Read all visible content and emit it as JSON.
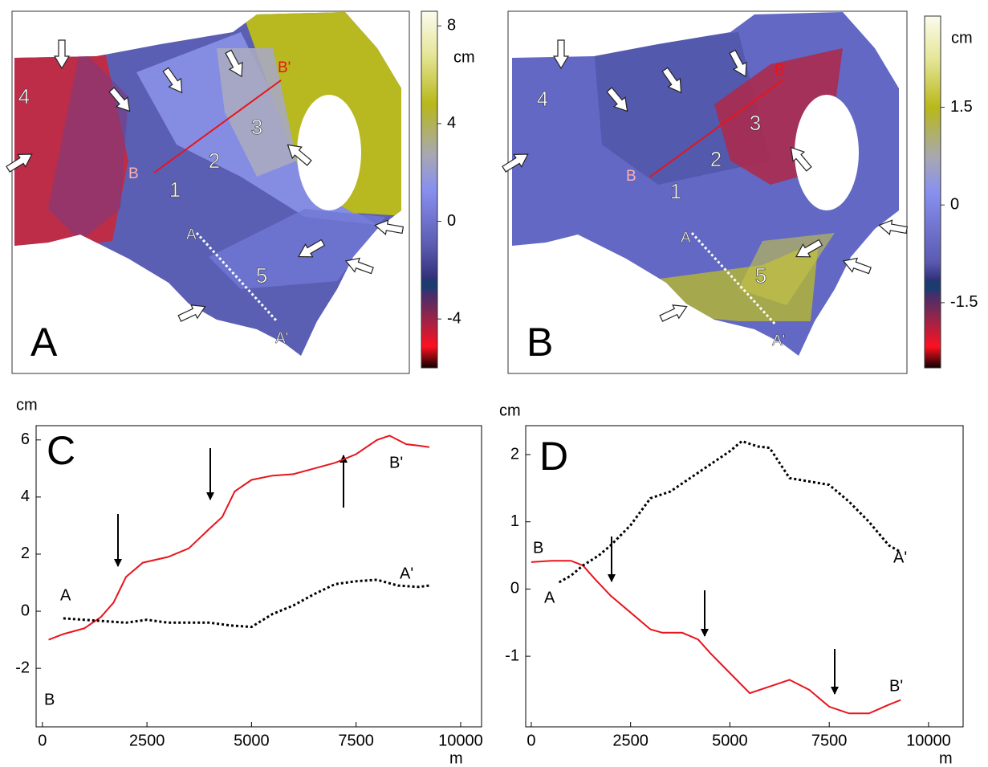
{
  "chart_data": [
    {
      "type": "map",
      "panel": "A",
      "zones": [
        "4",
        "1",
        "2",
        "3",
        "5"
      ],
      "profile": [
        "A",
        "A'",
        "B",
        "B'"
      ],
      "colorbar": {
        "unit": "cm",
        "ticks": [
          8,
          4,
          0,
          -4
        ],
        "lim": [
          -6,
          8.6
        ]
      }
    },
    {
      "type": "map",
      "panel": "B",
      "zones": [
        "4",
        "1",
        "2",
        "3",
        "5"
      ],
      "profile": [
        "A",
        "A'",
        "B",
        "B'"
      ],
      "colorbar": {
        "unit": "cm",
        "ticks": [
          1.5,
          0,
          -1.5
        ],
        "lim": [
          -2.5,
          2.9
        ]
      }
    },
    {
      "type": "line",
      "panel": "C",
      "y_label": "cm",
      "x_label": "m",
      "xlim": [
        -150,
        10500
      ],
      "ylim": [
        -4.05,
        6.5
      ],
      "xticks": [
        0,
        2500,
        5000,
        7500,
        10000
      ],
      "yticks": [
        -2,
        0,
        2,
        4,
        6
      ],
      "series": [
        {
          "color": "#e8141c",
          "style": "solid",
          "start_label": "B",
          "end_label": "B'",
          "x": [
            150,
            500,
            1000,
            1400,
            1700,
            2000,
            2400,
            3000,
            3500,
            4000,
            4300,
            4600,
            5000,
            5500,
            6000,
            6500,
            7000,
            7500,
            8000,
            8300,
            8700,
            9000,
            9250
          ],
          "values": [
            -1.0,
            -0.8,
            -0.6,
            -0.2,
            0.3,
            1.2,
            1.7,
            1.9,
            2.2,
            2.9,
            3.3,
            4.2,
            4.6,
            4.75,
            4.8,
            5.0,
            5.2,
            5.5,
            6.0,
            6.15,
            5.85,
            5.8,
            5.75
          ]
        },
        {
          "color": "#000000",
          "style": "dotted",
          "start_label": "A",
          "end_label": "A'",
          "x": [
            500,
            1000,
            1500,
            2000,
            2500,
            3000,
            3500,
            4000,
            4500,
            5000,
            5500,
            6000,
            6500,
            7000,
            7500,
            8000,
            8500,
            9000,
            9250
          ],
          "values": [
            -0.25,
            -0.3,
            -0.35,
            -0.4,
            -0.3,
            -0.4,
            -0.4,
            -0.4,
            -0.5,
            -0.55,
            -0.1,
            0.2,
            0.6,
            0.95,
            1.05,
            1.1,
            0.9,
            0.85,
            0.9
          ]
        }
      ]
    },
    {
      "type": "line",
      "panel": "D",
      "y_label": "cm",
      "x_label": "m",
      "xlim": [
        -140,
        10870
      ],
      "ylim": [
        -2.05,
        2.43
      ],
      "xticks": [
        0,
        2500,
        5000,
        7500,
        10000
      ],
      "yticks": [
        -1,
        0,
        1,
        2
      ],
      "series": [
        {
          "color": "#e8141c",
          "style": "solid",
          "start_label": "B",
          "end_label": "B'",
          "x": [
            0,
            500,
            1000,
            1300,
            1600,
            2000,
            2500,
            3000,
            3300,
            3800,
            4200,
            4500,
            5000,
            5500,
            6000,
            6500,
            7000,
            7500,
            8000,
            8500,
            9000,
            9300
          ],
          "values": [
            0.4,
            0.42,
            0.42,
            0.35,
            0.15,
            -0.1,
            -0.35,
            -0.6,
            -0.65,
            -0.65,
            -0.75,
            -0.95,
            -1.25,
            -1.55,
            -1.45,
            -1.35,
            -1.5,
            -1.75,
            -1.85,
            -1.85,
            -1.72,
            -1.65
          ]
        },
        {
          "color": "#000000",
          "style": "dotted",
          "start_label": "A",
          "end_label": "A'",
          "x": [
            700,
            1000,
            1300,
            1700,
            2000,
            2500,
            3000,
            3500,
            4000,
            4500,
            5000,
            5300,
            5700,
            6000,
            6500,
            7000,
            7500,
            8000,
            8500,
            9000,
            9300
          ],
          "values": [
            0.1,
            0.2,
            0.35,
            0.5,
            0.65,
            0.95,
            1.35,
            1.45,
            1.65,
            1.85,
            2.05,
            2.2,
            2.12,
            2.1,
            1.65,
            1.6,
            1.55,
            1.3,
            1.0,
            0.65,
            0.55
          ]
        }
      ]
    }
  ]
}
